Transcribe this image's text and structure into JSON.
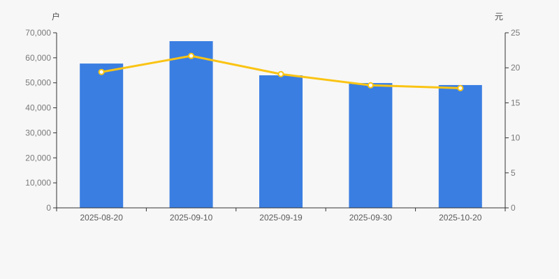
{
  "chart_data": {
    "type": "bar",
    "subtype": "bar-line-combo",
    "title": "",
    "categories": [
      "2025-08-20",
      "2025-09-10",
      "2025-09-19",
      "2025-09-30",
      "2025-10-20"
    ],
    "series": [
      {
        "name": "holders-bars",
        "type": "bar",
        "axis": "left",
        "values": [
          57700,
          66650,
          53000,
          49900,
          49100
        ],
        "color": "#3a7ee2"
      },
      {
        "name": "price-line",
        "type": "line",
        "axis": "right",
        "values": [
          19.4,
          21.7,
          19.1,
          17.5,
          17.1
        ],
        "color": "#fac414",
        "marker": "empty-circle",
        "marker_fill": "#ffffff"
      }
    ],
    "left_axis": {
      "unit": "户",
      "min": 0,
      "max": 70000,
      "tick_values": [
        0,
        10000,
        20000,
        30000,
        40000,
        50000,
        60000,
        70000
      ],
      "tick_labels": [
        "0",
        "10,000",
        "20,000",
        "30,000",
        "40,000",
        "50,000",
        "60,000",
        "70,000"
      ]
    },
    "right_axis": {
      "unit": "元",
      "min": 0,
      "max": 25,
      "tick_values": [
        0,
        5,
        10,
        15,
        20,
        25
      ],
      "tick_labels": [
        "0",
        "5",
        "10",
        "15",
        "20",
        "25"
      ]
    },
    "layout": {
      "grid": false,
      "legend": "none",
      "background_color": "#f7f7f7",
      "axis_line_color": "#333333",
      "tick_label_color": "#7a7a7a",
      "x_label_color": "#5a5a5a"
    }
  }
}
